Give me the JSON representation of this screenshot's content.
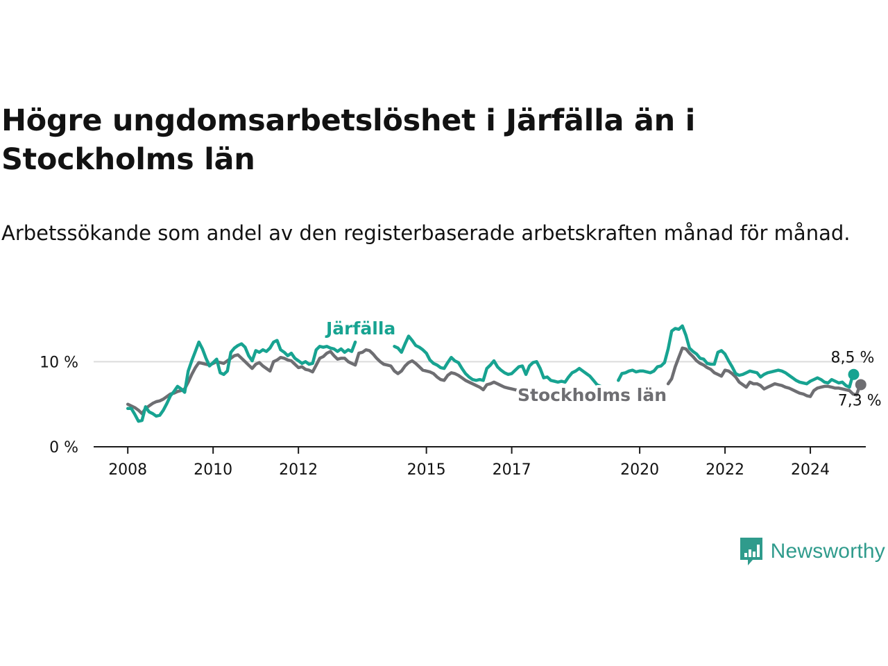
{
  "title": "Högre ungdomsarbetslöshet i Järfälla än i Stockholms län",
  "subtitle": "Arbetssökande som andel av den registerbaserade arbetskraften månad för månad.",
  "brand": {
    "name": "Newsworthy",
    "color": "#2f9b8c",
    "icon": "bar-chart-speech-bubble-icon"
  },
  "chart_data": {
    "type": "line",
    "title": "Högre ungdomsarbetslöshet i Järfälla än i Stockholms län",
    "xlabel": "",
    "ylabel": "",
    "x_start": 2008.0,
    "x_step": 0.08333,
    "xlim": [
      2007.2,
      2025.3
    ],
    "ylim": [
      0,
      15
    ],
    "y_ticks": [
      {
        "value": 0,
        "label": "0 %"
      },
      {
        "value": 10,
        "label": "10 %"
      }
    ],
    "x_ticks": [
      {
        "value": 2008,
        "label": "2008"
      },
      {
        "value": 2010,
        "label": "2010"
      },
      {
        "value": 2012,
        "label": "2012"
      },
      {
        "value": 2015,
        "label": "2015"
      },
      {
        "value": 2017,
        "label": "2017"
      },
      {
        "value": 2020,
        "label": "2020"
      },
      {
        "value": 2022,
        "label": "2022"
      },
      {
        "value": 2024,
        "label": "2024"
      }
    ],
    "grid": true,
    "series": [
      {
        "name": "Järfälla",
        "color": "#17a391",
        "end_label": "8,5 %",
        "values": [
          4.5,
          4.5,
          3.8,
          3.0,
          3.1,
          4.7,
          4.1,
          3.9,
          3.6,
          3.7,
          4.3,
          5.1,
          6.0,
          6.5,
          7.1,
          6.8,
          6.4,
          8.9,
          10.1,
          11.2,
          12.3,
          11.5,
          10.4,
          9.5,
          9.9,
          10.3,
          8.7,
          8.5,
          8.9,
          11.1,
          11.6,
          11.9,
          12.1,
          11.7,
          10.7,
          10.1,
          11.3,
          11.1,
          11.4,
          11.2,
          11.6,
          12.3,
          12.5,
          11.4,
          11.1,
          10.7,
          11.0,
          10.4,
          10.1,
          9.8,
          10.0,
          9.7,
          9.8,
          11.4,
          11.8,
          11.7,
          11.8,
          11.6,
          11.5,
          11.2,
          11.5,
          11.1,
          11.4,
          11.2,
          12.3,
          null,
          null,
          null,
          null,
          null,
          null,
          null,
          null,
          null,
          null,
          11.8,
          11.6,
          11.1,
          12.1,
          13.0,
          12.5,
          11.9,
          11.7,
          11.4,
          11.0,
          10.2,
          9.8,
          9.6,
          9.3,
          9.2,
          9.9,
          10.5,
          10.1,
          9.9,
          9.2,
          8.6,
          8.2,
          7.9,
          7.8,
          7.9,
          7.8,
          9.2,
          9.6,
          10.1,
          9.4,
          9.0,
          8.7,
          8.5,
          8.6,
          9.0,
          9.4,
          9.5,
          8.5,
          9.5,
          9.9,
          10.0,
          9.2,
          8.1,
          8.2,
          7.8,
          7.7,
          7.6,
          7.7,
          7.6,
          8.2,
          8.7,
          8.9,
          9.2,
          8.9,
          8.6,
          8.3,
          7.8,
          7.3,
          7.1,
          null,
          null,
          null,
          null,
          7.8,
          8.6,
          8.7,
          8.9,
          9.0,
          8.8,
          8.9,
          8.9,
          8.8,
          8.7,
          8.9,
          9.4,
          9.5,
          9.9,
          11.5,
          13.6,
          13.9,
          13.8,
          14.2,
          13.1,
          11.6,
          11.2,
          10.9,
          10.4,
          10.3,
          9.8,
          9.7,
          9.7,
          11.1,
          11.3,
          10.9,
          10.1,
          9.4,
          8.6,
          8.4,
          8.5,
          8.7,
          8.9,
          8.8,
          8.7,
          8.2,
          8.5,
          8.7,
          8.8,
          8.9,
          9.0,
          8.9,
          8.7,
          8.4,
          8.1,
          7.8,
          7.6,
          7.5,
          7.4,
          7.7,
          7.9,
          8.1,
          7.9,
          7.6,
          7.5,
          7.9,
          7.7,
          7.5,
          7.6,
          7.2,
          7.0,
          8.5
        ]
      },
      {
        "name": "Stockholms län",
        "color": "#6e6e72",
        "end_label": "7,3 %",
        "values": [
          5.0,
          4.8,
          4.6,
          4.3,
          3.9,
          4.5,
          4.8,
          5.1,
          5.3,
          5.4,
          5.6,
          5.9,
          6.2,
          6.3,
          6.5,
          6.6,
          6.8,
          7.6,
          8.5,
          9.3,
          9.9,
          9.8,
          9.7,
          9.6,
          9.8,
          10.0,
          9.9,
          9.8,
          10.1,
          10.4,
          10.7,
          10.8,
          10.4,
          10.0,
          9.6,
          9.2,
          9.7,
          9.9,
          9.5,
          9.2,
          8.9,
          10.0,
          10.2,
          10.5,
          10.4,
          10.2,
          10.1,
          9.7,
          9.3,
          9.4,
          9.1,
          9.0,
          8.8,
          9.6,
          10.4,
          10.6,
          11.0,
          11.2,
          10.7,
          10.3,
          10.4,
          10.4,
          10.0,
          9.8,
          9.6,
          11.0,
          11.1,
          11.4,
          11.3,
          10.9,
          10.4,
          10.0,
          9.7,
          9.6,
          9.5,
          8.9,
          8.6,
          8.9,
          9.5,
          9.9,
          10.1,
          9.8,
          9.4,
          9.0,
          8.9,
          8.8,
          8.6,
          8.2,
          7.9,
          7.8,
          8.4,
          8.7,
          8.6,
          8.4,
          8.1,
          7.8,
          7.6,
          7.4,
          7.2,
          7.0,
          6.7,
          7.3,
          7.4,
          7.6,
          7.4,
          7.2,
          7.0,
          6.9,
          6.8,
          6.7,
          6.6,
          null,
          null,
          null,
          null,
          null,
          null,
          null,
          null,
          null,
          null,
          null,
          null,
          null,
          null,
          null,
          null,
          null,
          null,
          null,
          null,
          null,
          null,
          null,
          null,
          null,
          null,
          null,
          null,
          null,
          null,
          null,
          null,
          null,
          null,
          null,
          null,
          null,
          null,
          null,
          null,
          null,
          7.4,
          8.0,
          9.4,
          10.5,
          11.6,
          11.5,
          11.0,
          10.6,
          10.1,
          9.8,
          9.6,
          9.3,
          9.1,
          8.7,
          8.5,
          8.3,
          9.0,
          8.9,
          8.6,
          8.2,
          7.6,
          7.3,
          7.0,
          7.6,
          7.4,
          7.4,
          7.2,
          6.8,
          7.0,
          7.2,
          7.4,
          7.3,
          7.2,
          7.0,
          6.9,
          6.7,
          6.5,
          6.3,
          6.2,
          6.0,
          5.9,
          6.6,
          6.9,
          7.0,
          7.1,
          7.1,
          7.0,
          6.9,
          6.9,
          6.8,
          6.7,
          6.6,
          6.2,
          6.1,
          7.3
        ]
      }
    ],
    "series_label_positions": [
      "top",
      "bottom"
    ]
  }
}
